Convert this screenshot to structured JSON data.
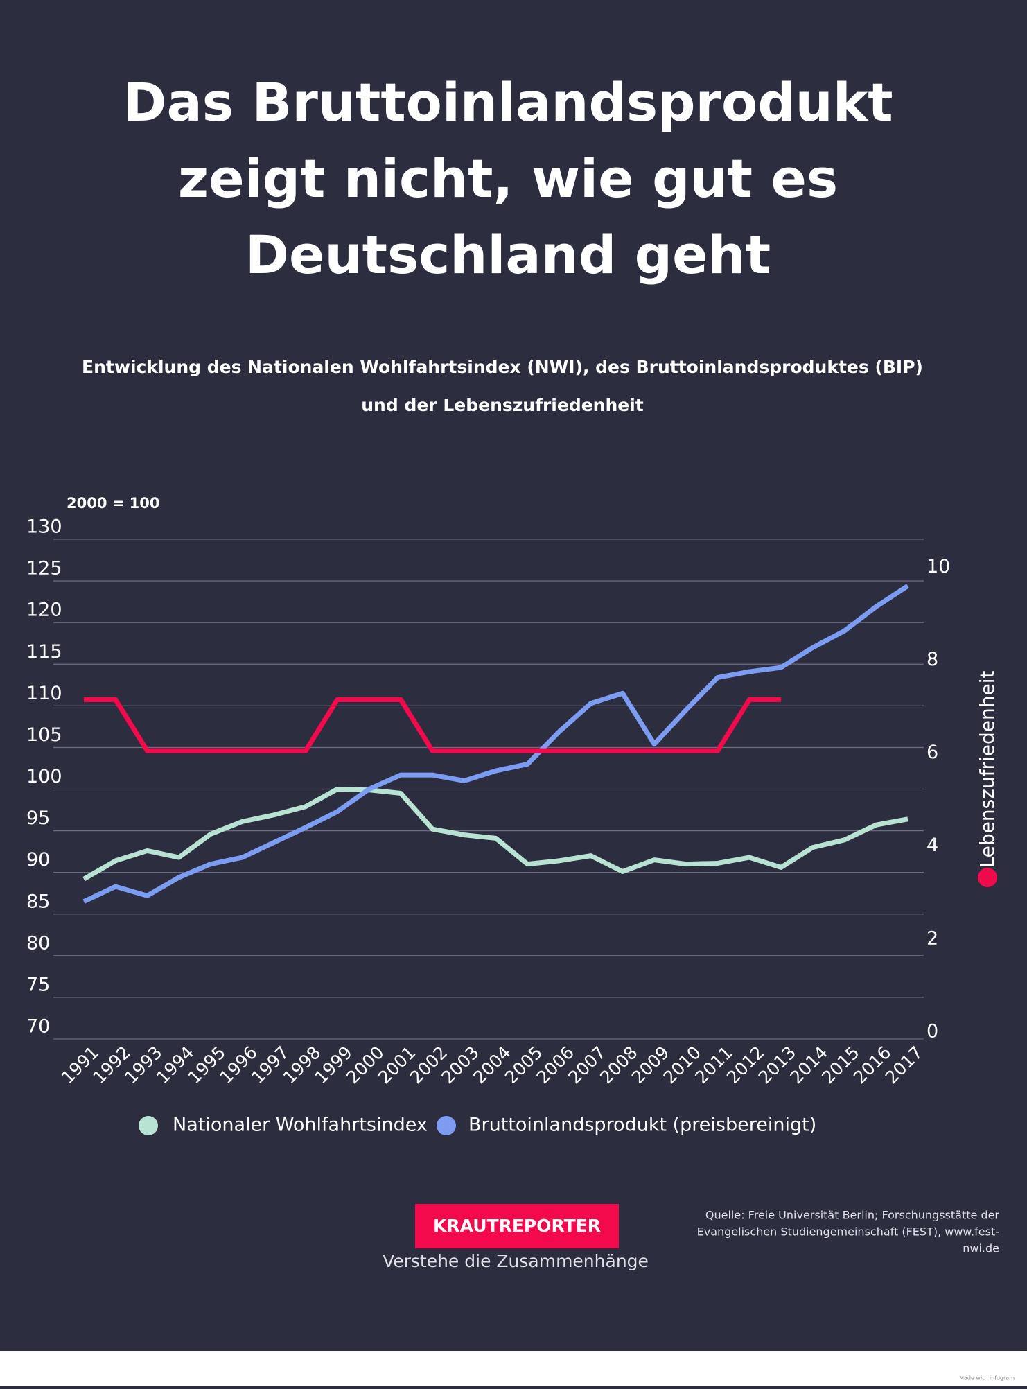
{
  "chart_data": {
    "type": "line",
    "title": [
      "Das Bruttoinlandsprodukt",
      "zeigt nicht, wie gut es",
      "Deutschland geht"
    ],
    "subtitle": [
      "Entwicklung des Nationalen Wohlfahrtsindex (NWI), des Bruttoinlandsproduktes (BIP)",
      "und der Lebenszufriedenheit"
    ],
    "y_label": "2000 = 100",
    "y2_label": "Lebenszufriedenheit",
    "categories": [
      "1991",
      "1992",
      "1993",
      "1994",
      "1995",
      "1996",
      "1997",
      "1998",
      "1999",
      "2000",
      "2001",
      "2002",
      "2003",
      "2004",
      "2005",
      "2006",
      "2007",
      "2008",
      "2009",
      "2010",
      "2011",
      "2012",
      "2013",
      "2014",
      "2015",
      "2016",
      "2017"
    ],
    "ylim": [
      70,
      130
    ],
    "yticks": [
      70,
      75,
      80,
      85,
      90,
      95,
      100,
      105,
      110,
      115,
      120,
      125,
      130
    ],
    "y2lim": [
      0,
      10.75
    ],
    "y2ticks": [
      0,
      2,
      4,
      6,
      8,
      10
    ],
    "grid": true,
    "series": [
      {
        "name": "Nationaler Wohlfahrtsindex",
        "color": "#b8e2d2",
        "values": [
          89.2,
          91.4,
          92.6,
          91.8,
          94.6,
          96.1,
          96.9,
          97.9,
          100,
          99.9,
          99.5,
          95.2,
          94.5,
          94.1,
          91,
          91.4,
          92,
          90.1,
          91.5,
          91,
          91.1,
          91.8,
          90.6,
          93,
          93.9,
          95.7,
          96.4
        ]
      },
      {
        "name": "Bruttoinlandsprodukt (preisbereinigt)",
        "color": "#7b9cf0",
        "values": [
          86.5,
          88.3,
          87.2,
          89.4,
          91,
          91.8,
          93.6,
          95.4,
          97.3,
          100,
          101.7,
          101.7,
          101,
          102.2,
          103,
          106.9,
          110.3,
          111.5,
          105.4,
          109.5,
          113.4,
          114.1,
          114.6,
          117,
          119,
          121.9,
          124.4
        ]
      },
      {
        "name": "Lebenszufriedenheit",
        "color": "#f20a4c",
        "axis": "y2",
        "values": [
          7.3,
          7.3,
          6.2,
          6.2,
          6.2,
          6.2,
          6.2,
          6.2,
          7.3,
          7.3,
          7.3,
          6.2,
          6.2,
          6.2,
          6.2,
          6.2,
          6.2,
          6.2,
          6.2,
          6.2,
          6.2,
          7.3,
          7.3,
          null,
          null,
          null,
          null
        ]
      }
    ],
    "brand": "KRAUTREPORTER",
    "tagline": "Verstehe die Zusammenhänge",
    "source": [
      "Quelle: Freie Universität Berlin; Forschungsstätte der",
      "Evangelischen Studiengemeinschaft (FEST), www.fest-",
      "nwi.de"
    ],
    "footer": "Made with infogram"
  }
}
